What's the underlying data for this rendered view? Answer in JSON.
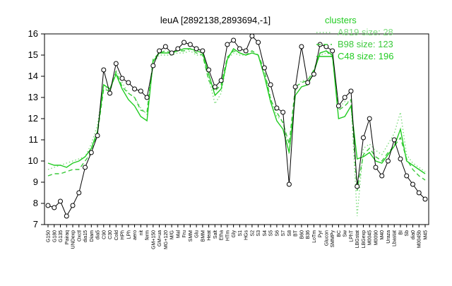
{
  "chart_data": {
    "type": "line",
    "title": "leuA [2892138,2893694,-1]",
    "xlabel": "",
    "ylabel": "",
    "ylim": [
      7,
      16
    ],
    "yticks": [
      7,
      8,
      9,
      10,
      11,
      12,
      13,
      14,
      15,
      16
    ],
    "grid": false,
    "legend_title": "clusters",
    "legend_position": "top-right",
    "x_tick_labels": [
      "G150",
      "G180",
      "G135",
      "Pairaq",
      "UNDexp",
      "Oxctl",
      "dia15",
      "Diam",
      "dia5",
      "C90",
      "C30",
      "Cold",
      "HPh",
      "LPh",
      "aero",
      "nit",
      "ferm",
      "GM+150",
      "GM+ua",
      "MG+120",
      "M/G",
      "Mal",
      "Fru",
      "SMM",
      "Glu",
      "BMM",
      "Heat",
      "Salt",
      "Etha",
      "HTm",
      "Gly",
      "S1",
      "HGs",
      "S2",
      "S3",
      "S4",
      "S5",
      "S6",
      "S7",
      "S8",
      "BT",
      "B60",
      "B36",
      "LoTm",
      "Pyr",
      "Glucon",
      "SMMPy",
      "BC",
      "Sw",
      "LPhT",
      "LBGstat",
      "LBGexp",
      "M0045",
      "M0090",
      "M40",
      "Uraza",
      "Lbastat",
      "BI",
      "Sb",
      "dia0",
      "M0045b",
      "M45"
    ],
    "series": [
      {
        "name": "A819 size: 28",
        "color": "#7ddc7d",
        "line_style": "dotted",
        "values": [
          9.6,
          9.7,
          9.8,
          9.9,
          10.0,
          10.1,
          10.2,
          10.8,
          11.7,
          13.6,
          13.2,
          14.3,
          13.7,
          13.2,
          13.0,
          12.5,
          12.2,
          14.6,
          15.0,
          15.0,
          15.0,
          15.1,
          15.1,
          15.2,
          15.0,
          15.0,
          13.9,
          12.7,
          13.2,
          14.8,
          15.1,
          15.0,
          15.0,
          15.1,
          15.0,
          14.2,
          13.0,
          12.1,
          11.9,
          10.3,
          13.3,
          13.8,
          13.8,
          14.3,
          15.0,
          15.1,
          15.0,
          12.5,
          12.8,
          12.8,
          7.4,
          10.6,
          10.8,
          10.5,
          10.3,
          10.8,
          11.3,
          12.3,
          10.3,
          9.9,
          9.7,
          9.5
        ]
      },
      {
        "name": "B98 size: 123",
        "color": "#39c939",
        "line_style": "dashed",
        "values": [
          9.3,
          9.4,
          9.4,
          9.5,
          9.6,
          9.6,
          10.0,
          10.4,
          11.3,
          13.4,
          13.3,
          14.2,
          13.5,
          13.2,
          13.0,
          12.4,
          12.3,
          14.8,
          15.1,
          15.2,
          15.1,
          15.2,
          15.2,
          15.3,
          15.1,
          15.0,
          13.8,
          13.3,
          13.6,
          14.9,
          15.2,
          15.1,
          15.0,
          15.2,
          15.0,
          14.3,
          12.9,
          12.3,
          11.8,
          10.8,
          13.5,
          13.7,
          13.8,
          14.3,
          15.1,
          15.2,
          14.9,
          12.4,
          12.6,
          12.9,
          8.6,
          10.3,
          10.6,
          10.2,
          10.0,
          10.4,
          10.7,
          11.1,
          10.1,
          9.6,
          9.3,
          9.1
        ]
      },
      {
        "name": "C48 size: 196",
        "color": "#22cc22",
        "line_style": "solid",
        "values": [
          9.9,
          9.8,
          9.8,
          9.7,
          9.9,
          10.0,
          10.2,
          10.6,
          11.4,
          13.6,
          13.4,
          14.1,
          13.4,
          12.9,
          12.6,
          12.1,
          11.9,
          14.7,
          15.1,
          15.1,
          15.1,
          15.2,
          15.3,
          15.3,
          15.2,
          15.1,
          14.1,
          13.1,
          13.4,
          14.8,
          15.3,
          15.1,
          15.0,
          15.1,
          15.0,
          14.0,
          12.8,
          11.9,
          11.5,
          10.4,
          13.1,
          13.5,
          13.6,
          14.2,
          15.1,
          15.2,
          15.0,
          12.0,
          12.1,
          12.6,
          10.1,
          10.2,
          10.4,
          10.0,
          9.9,
          10.3,
          10.7,
          11.5,
          10.0,
          9.8,
          9.6,
          9.4
        ]
      },
      {
        "name": "",
        "color": "#000000",
        "line_style": "solid-points",
        "values": [
          7.9,
          7.8,
          8.1,
          7.4,
          7.9,
          8.5,
          9.7,
          10.4,
          11.2,
          14.3,
          13.2,
          14.6,
          13.9,
          13.7,
          13.4,
          13.3,
          13.0,
          14.5,
          15.2,
          15.4,
          15.1,
          15.3,
          15.6,
          15.5,
          15.3,
          15.2,
          14.3,
          13.5,
          13.8,
          15.5,
          15.7,
          15.3,
          15.2,
          15.9,
          15.6,
          14.4,
          13.6,
          12.5,
          12.3,
          8.9,
          13.5,
          15.4,
          13.7,
          14.1,
          15.5,
          15.4,
          15.2,
          12.6,
          13.0,
          13.3,
          8.8,
          11.1,
          12.0,
          9.7,
          9.3,
          10.0,
          11.0,
          10.1,
          9.3,
          8.9,
          8.5,
          8.2
        ]
      }
    ]
  }
}
